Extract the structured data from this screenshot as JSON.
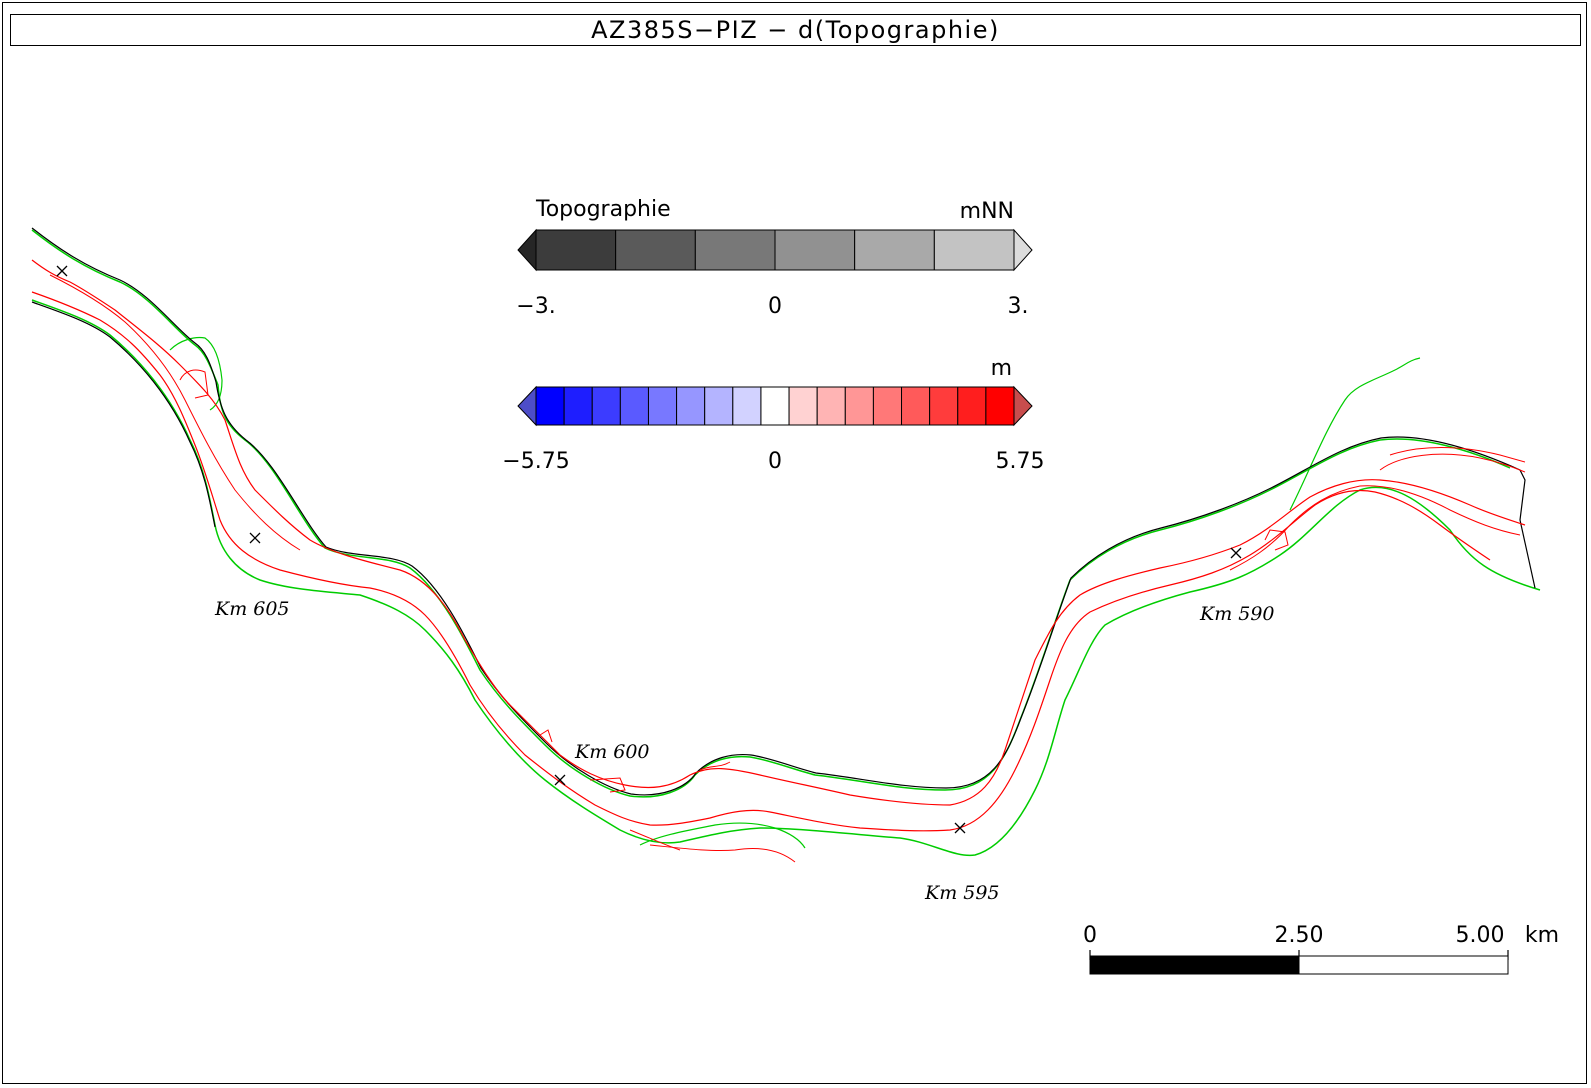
{
  "title": "AZ385S-PIZ - d(Topographie)",
  "legend_topo": {
    "label": "Topographie",
    "unit": "mNN",
    "ticks": [
      "-3.",
      "0",
      "3."
    ],
    "colors": [
      "#3c3c3c",
      "#5a5a5a",
      "#787878",
      "#919191",
      "#a9a9a9",
      "#c3c3c3"
    ],
    "under_color": "#262626",
    "over_color": "#dcdcdc"
  },
  "legend_diff": {
    "unit": "m",
    "ticks": [
      "-5.75",
      "0",
      "5.75"
    ],
    "colors": [
      "#0000ff",
      "#1e1eff",
      "#3c3cff",
      "#5a5aff",
      "#7878ff",
      "#9696ff",
      "#b4b4ff",
      "#d2d2ff",
      "#ffffff",
      "#ffd2d2",
      "#ffb4b4",
      "#ff9696",
      "#ff7878",
      "#ff5a5a",
      "#ff3c3c",
      "#ff1e1e",
      "#ff0000"
    ],
    "under_color": "#4d4dc8",
    "over_color": "#c84d4d"
  },
  "km_markers": [
    {
      "label": "Km 605"
    },
    {
      "label": "Km 600"
    },
    {
      "label": "Km 595"
    },
    {
      "label": "Km 590"
    }
  ],
  "scale_bar": {
    "ticks": [
      "0",
      "2.50",
      "5.00"
    ],
    "unit": "km"
  },
  "line_colors": {
    "bank_outer": "#00cc00",
    "shoreline": "#ff0000",
    "boundary": "#000000",
    "difference_ticks": "#0000dd"
  }
}
